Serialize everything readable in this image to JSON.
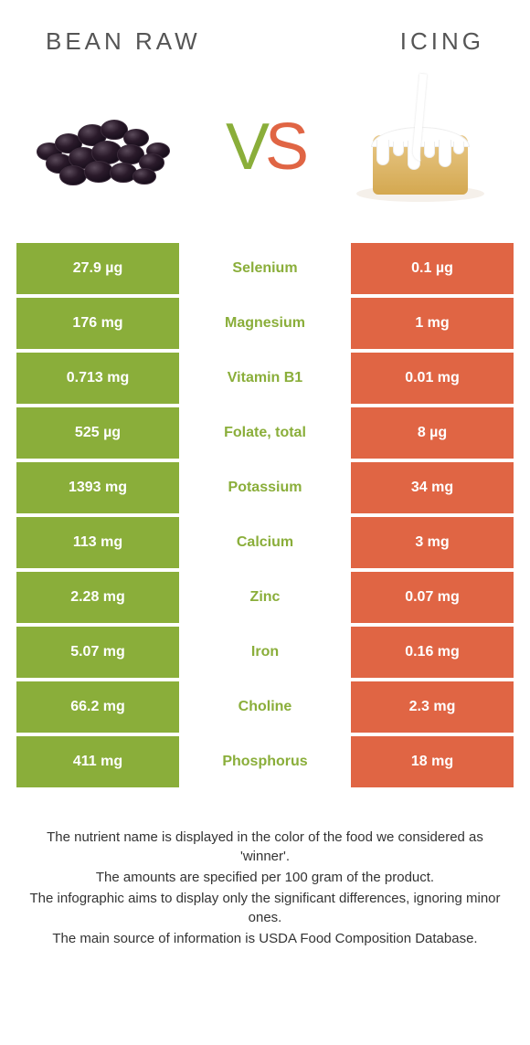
{
  "colors": {
    "left_bg": "#8aae3a",
    "right_bg": "#e06544",
    "mid_winner_left": "#8aae3a",
    "mid_winner_right": "#e06544",
    "cell_text": "#ffffff",
    "title_text": "#555555"
  },
  "header": {
    "left_title": "BEAN RAW",
    "right_title": "ICING"
  },
  "vs": {
    "v": "V",
    "s": "S"
  },
  "nutrients": [
    {
      "name": "Selenium",
      "left": "27.9 µg",
      "right": "0.1 µg",
      "winner": "left"
    },
    {
      "name": "Magnesium",
      "left": "176 mg",
      "right": "1 mg",
      "winner": "left"
    },
    {
      "name": "Vitamin B1",
      "left": "0.713 mg",
      "right": "0.01 mg",
      "winner": "left"
    },
    {
      "name": "Folate, total",
      "left": "525 µg",
      "right": "8 µg",
      "winner": "left"
    },
    {
      "name": "Potassium",
      "left": "1393 mg",
      "right": "34 mg",
      "winner": "left"
    },
    {
      "name": "Calcium",
      "left": "113 mg",
      "right": "3 mg",
      "winner": "left"
    },
    {
      "name": "Zinc",
      "left": "2.28 mg",
      "right": "0.07 mg",
      "winner": "left"
    },
    {
      "name": "Iron",
      "left": "5.07 mg",
      "right": "0.16 mg",
      "winner": "left"
    },
    {
      "name": "Choline",
      "left": "66.2 mg",
      "right": "2.3 mg",
      "winner": "left"
    },
    {
      "name": "Phosphorus",
      "left": "411 mg",
      "right": "18 mg",
      "winner": "left"
    }
  ],
  "footnotes": [
    "The nutrient name is displayed in the color of the food we considered as 'winner'.",
    "The amounts are specified per 100 gram of the product.",
    "The infographic aims to display only the significant differences, ignoring minor ones.",
    "The main source of information is USDA Food Composition Database."
  ]
}
